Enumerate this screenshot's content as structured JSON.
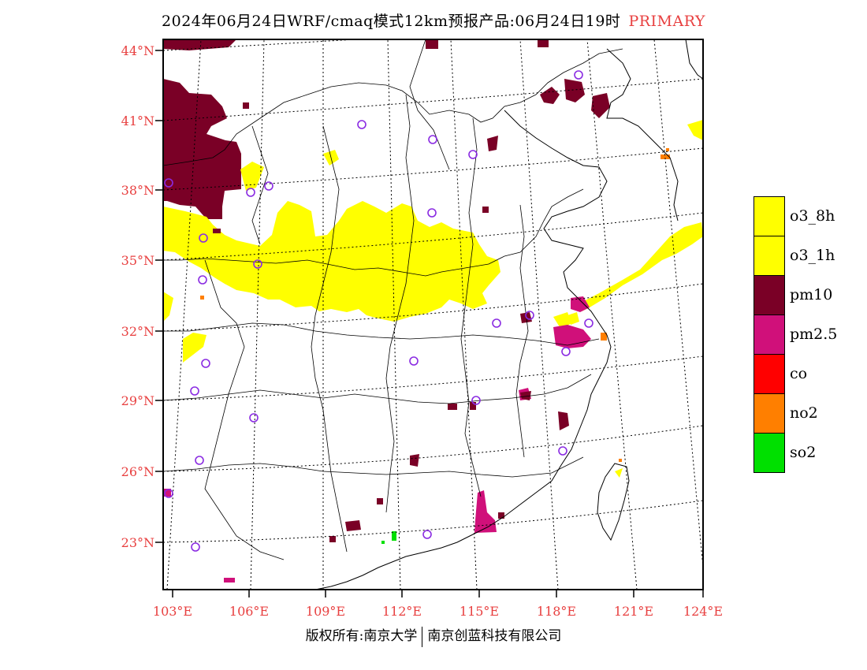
{
  "header": {
    "title": "2024年06月24日WRF/cmaq模式12km预报产品:06月24日19时",
    "tag": "PRIMARY"
  },
  "map": {
    "lat_labels": [
      "44°N",
      "41°N",
      "38°N",
      "35°N",
      "32°N",
      "29°N",
      "26°N",
      "23°N"
    ],
    "lon_labels": [
      "103°E",
      "106°E",
      "109°E",
      "112°E",
      "115°E",
      "118°E",
      "121°E",
      "124°E"
    ]
  },
  "legend": {
    "items": [
      {
        "label": "o3_8h",
        "color": "#ffff00"
      },
      {
        "label": "o3_1h",
        "color": "#ffff00"
      },
      {
        "label": "pm10",
        "color": "#7a0026"
      },
      {
        "label": "pm2.5",
        "color": "#d0107a"
      },
      {
        "label": "co",
        "color": "#ff0000"
      },
      {
        "label": "no2",
        "color": "#ff7f00"
      },
      {
        "label": "so2",
        "color": "#00e000"
      }
    ]
  },
  "footer": {
    "left": "版权所有:南京大学",
    "right": "南京创蓝科技有限公司"
  },
  "colors": {
    "label_red": "#e84040",
    "station_circle": "#8a2be2",
    "yellow": "#ffff00",
    "pm10": "#7a0026",
    "pm25": "#d0107a",
    "no2": "#ff7f00",
    "so2": "#00e000"
  }
}
